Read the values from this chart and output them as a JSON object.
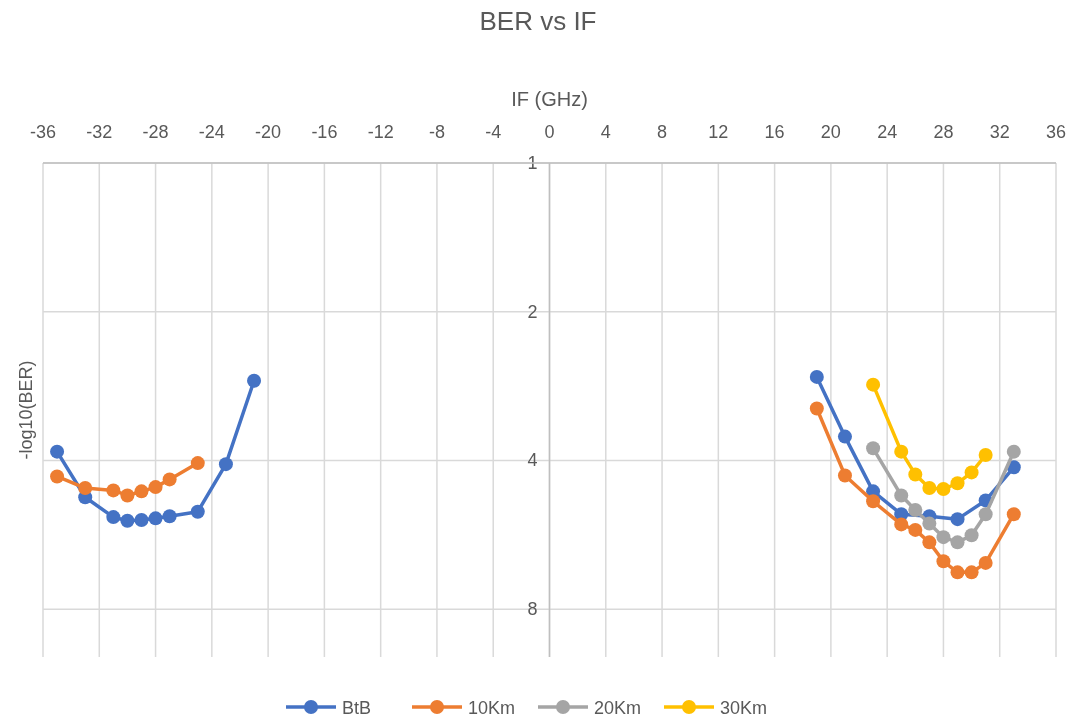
{
  "chart_data": {
    "type": "line",
    "title": "BER vs IF",
    "xlabel": "IF (GHz)",
    "ylabel": "-log10(BER)",
    "log": "y",
    "xlim": [
      -36,
      36
    ],
    "xticks": [
      -36,
      -32,
      -28,
      -24,
      -20,
      -16,
      -12,
      -8,
      -4,
      0,
      4,
      8,
      12,
      16,
      20,
      24,
      28,
      32,
      36
    ],
    "ylim": [
      10,
      1
    ],
    "yticks": [
      1,
      2,
      4,
      8
    ],
    "grid": true,
    "legend": "bottom",
    "marker": "circle",
    "line_style": "solid",
    "series": [
      {
        "name": "BtB",
        "color": "#4472c4",
        "x": [
          -35,
          -33,
          -31,
          -30,
          -29,
          -28,
          -27,
          -25,
          -23,
          -21,
          0,
          19,
          21,
          23,
          25,
          27,
          29,
          31,
          33
        ],
        "values": [
          3.84,
          4.75,
          5.21,
          5.3,
          5.28,
          5.24,
          5.19,
          5.08,
          4.07,
          2.76,
          null,
          2.71,
          3.58,
          4.62,
          5.14,
          5.19,
          5.26,
          4.82,
          4.13
        ]
      },
      {
        "name": "10Km",
        "color": "#ed7d31",
        "x": [
          -35,
          -33,
          -31,
          -30,
          -29,
          -28,
          -27,
          -25,
          0,
          19,
          21,
          23,
          25,
          26,
          27,
          28,
          29,
          30,
          31,
          33
        ],
        "values": [
          4.31,
          4.55,
          4.6,
          4.71,
          4.62,
          4.53,
          4.37,
          4.05,
          null,
          3.14,
          4.29,
          4.84,
          5.39,
          5.53,
          5.86,
          6.4,
          6.74,
          6.74,
          6.45,
          5.14
        ]
      },
      {
        "name": "20Km",
        "color": "#a5a5a5",
        "x": [
          23,
          25,
          26,
          27,
          28,
          29,
          30,
          31,
          33
        ],
        "values": [
          3.78,
          4.71,
          5.04,
          5.37,
          5.72,
          5.86,
          5.67,
          5.14,
          3.84
        ]
      },
      {
        "name": "30Km",
        "color": "#ffc000",
        "x": [
          23,
          25,
          26,
          27,
          28,
          29,
          30,
          31
        ],
        "values": [
          2.81,
          3.84,
          4.27,
          4.55,
          4.57,
          4.45,
          4.23,
          3.9
        ]
      }
    ]
  }
}
